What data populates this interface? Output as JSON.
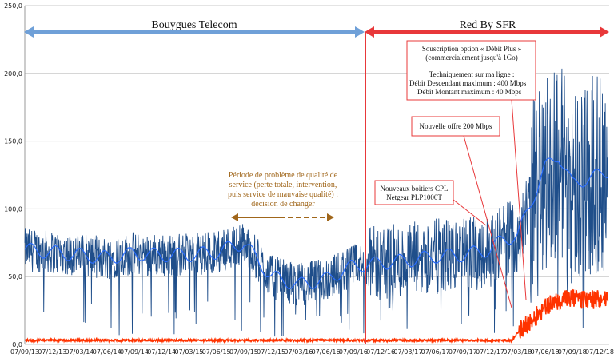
{
  "chart_data": {
    "type": "line",
    "title": "",
    "xlabel": "",
    "ylabel": "",
    "ylim": [
      0,
      250
    ],
    "yticks": [
      "0,0",
      "50,0",
      "100,0",
      "150,0",
      "200,0",
      "250,0"
    ],
    "xticks": [
      "07/09/13",
      "07/12/13",
      "07/03/14",
      "07/06/14",
      "07/09/14",
      "07/12/14",
      "07/03/15",
      "07/06/15",
      "07/09/15",
      "07/12/15",
      "07/03/16",
      "07/06/16",
      "07/09/16",
      "07/12/16",
      "07/03/17",
      "07/06/17",
      "07/09/17",
      "07/12/17",
      "07/03/18",
      "07/06/18",
      "07/09/18",
      "07/12/18"
    ],
    "grid": "horizontal",
    "legend": "none",
    "colors": {
      "download": "#1f4e8a",
      "download_avg": "#2a6dff",
      "upload": "#ff3300",
      "bouygues": "#6fa0d8",
      "sfr": "#e8383a",
      "period_arrow": "#a0661a"
    },
    "series": [
      {
        "key": "download",
        "x": [
          0,
          1,
          2,
          3,
          4,
          5,
          6,
          7,
          8,
          9,
          10,
          11,
          12,
          13,
          14,
          15,
          16,
          17,
          17.5,
          18,
          18.5,
          19,
          19.5,
          20,
          20.5,
          21,
          21.5
        ],
        "values": [
          70,
          68,
          66,
          64,
          67,
          66,
          66,
          68,
          75,
          50,
          44,
          48,
          58,
          60,
          62,
          65,
          66,
          70,
          78,
          80,
          105,
          130,
          140,
          118,
          122,
          125,
          130
        ]
      },
      {
        "key": "upload",
        "x": [
          0,
          3,
          6,
          9,
          12,
          15,
          17,
          17.8,
          18.2,
          18.6,
          19,
          19.4,
          19.8,
          20.2,
          20.6,
          21,
          21.5
        ],
        "values": [
          3,
          3,
          3,
          3,
          3,
          3,
          3,
          3,
          14,
          20,
          30,
          32,
          35,
          35,
          34,
          35,
          33
        ]
      }
    ],
    "bands": [
      {
        "label": "Bouygues Telecom",
        "from": 0,
        "to": 12.6
      },
      {
        "label": "Red By SFR",
        "from": 12.6,
        "to": 21.8
      }
    ],
    "annotations": {
      "offer_400": [
        "Souscription option « Débit Plus »",
        "(commercialement jusqu'à 1Go)",
        "",
        "Techniquement sur ma ligne :",
        "Débit Descendant maximum :     400 Mbps",
        "Débit Montant maximum :    40 Mbps"
      ],
      "offer_200": [
        "Nouvelle offre 200 Mbps"
      ],
      "cpl": [
        "Nouveaux boitiers CPL",
        "Netgear PLP1000T"
      ],
      "period": [
        "Période de problème de qualité de",
        "service (perte totale, intervention,",
        "puis service de mauvaise qualité) :",
        "décision de changer"
      ]
    }
  }
}
